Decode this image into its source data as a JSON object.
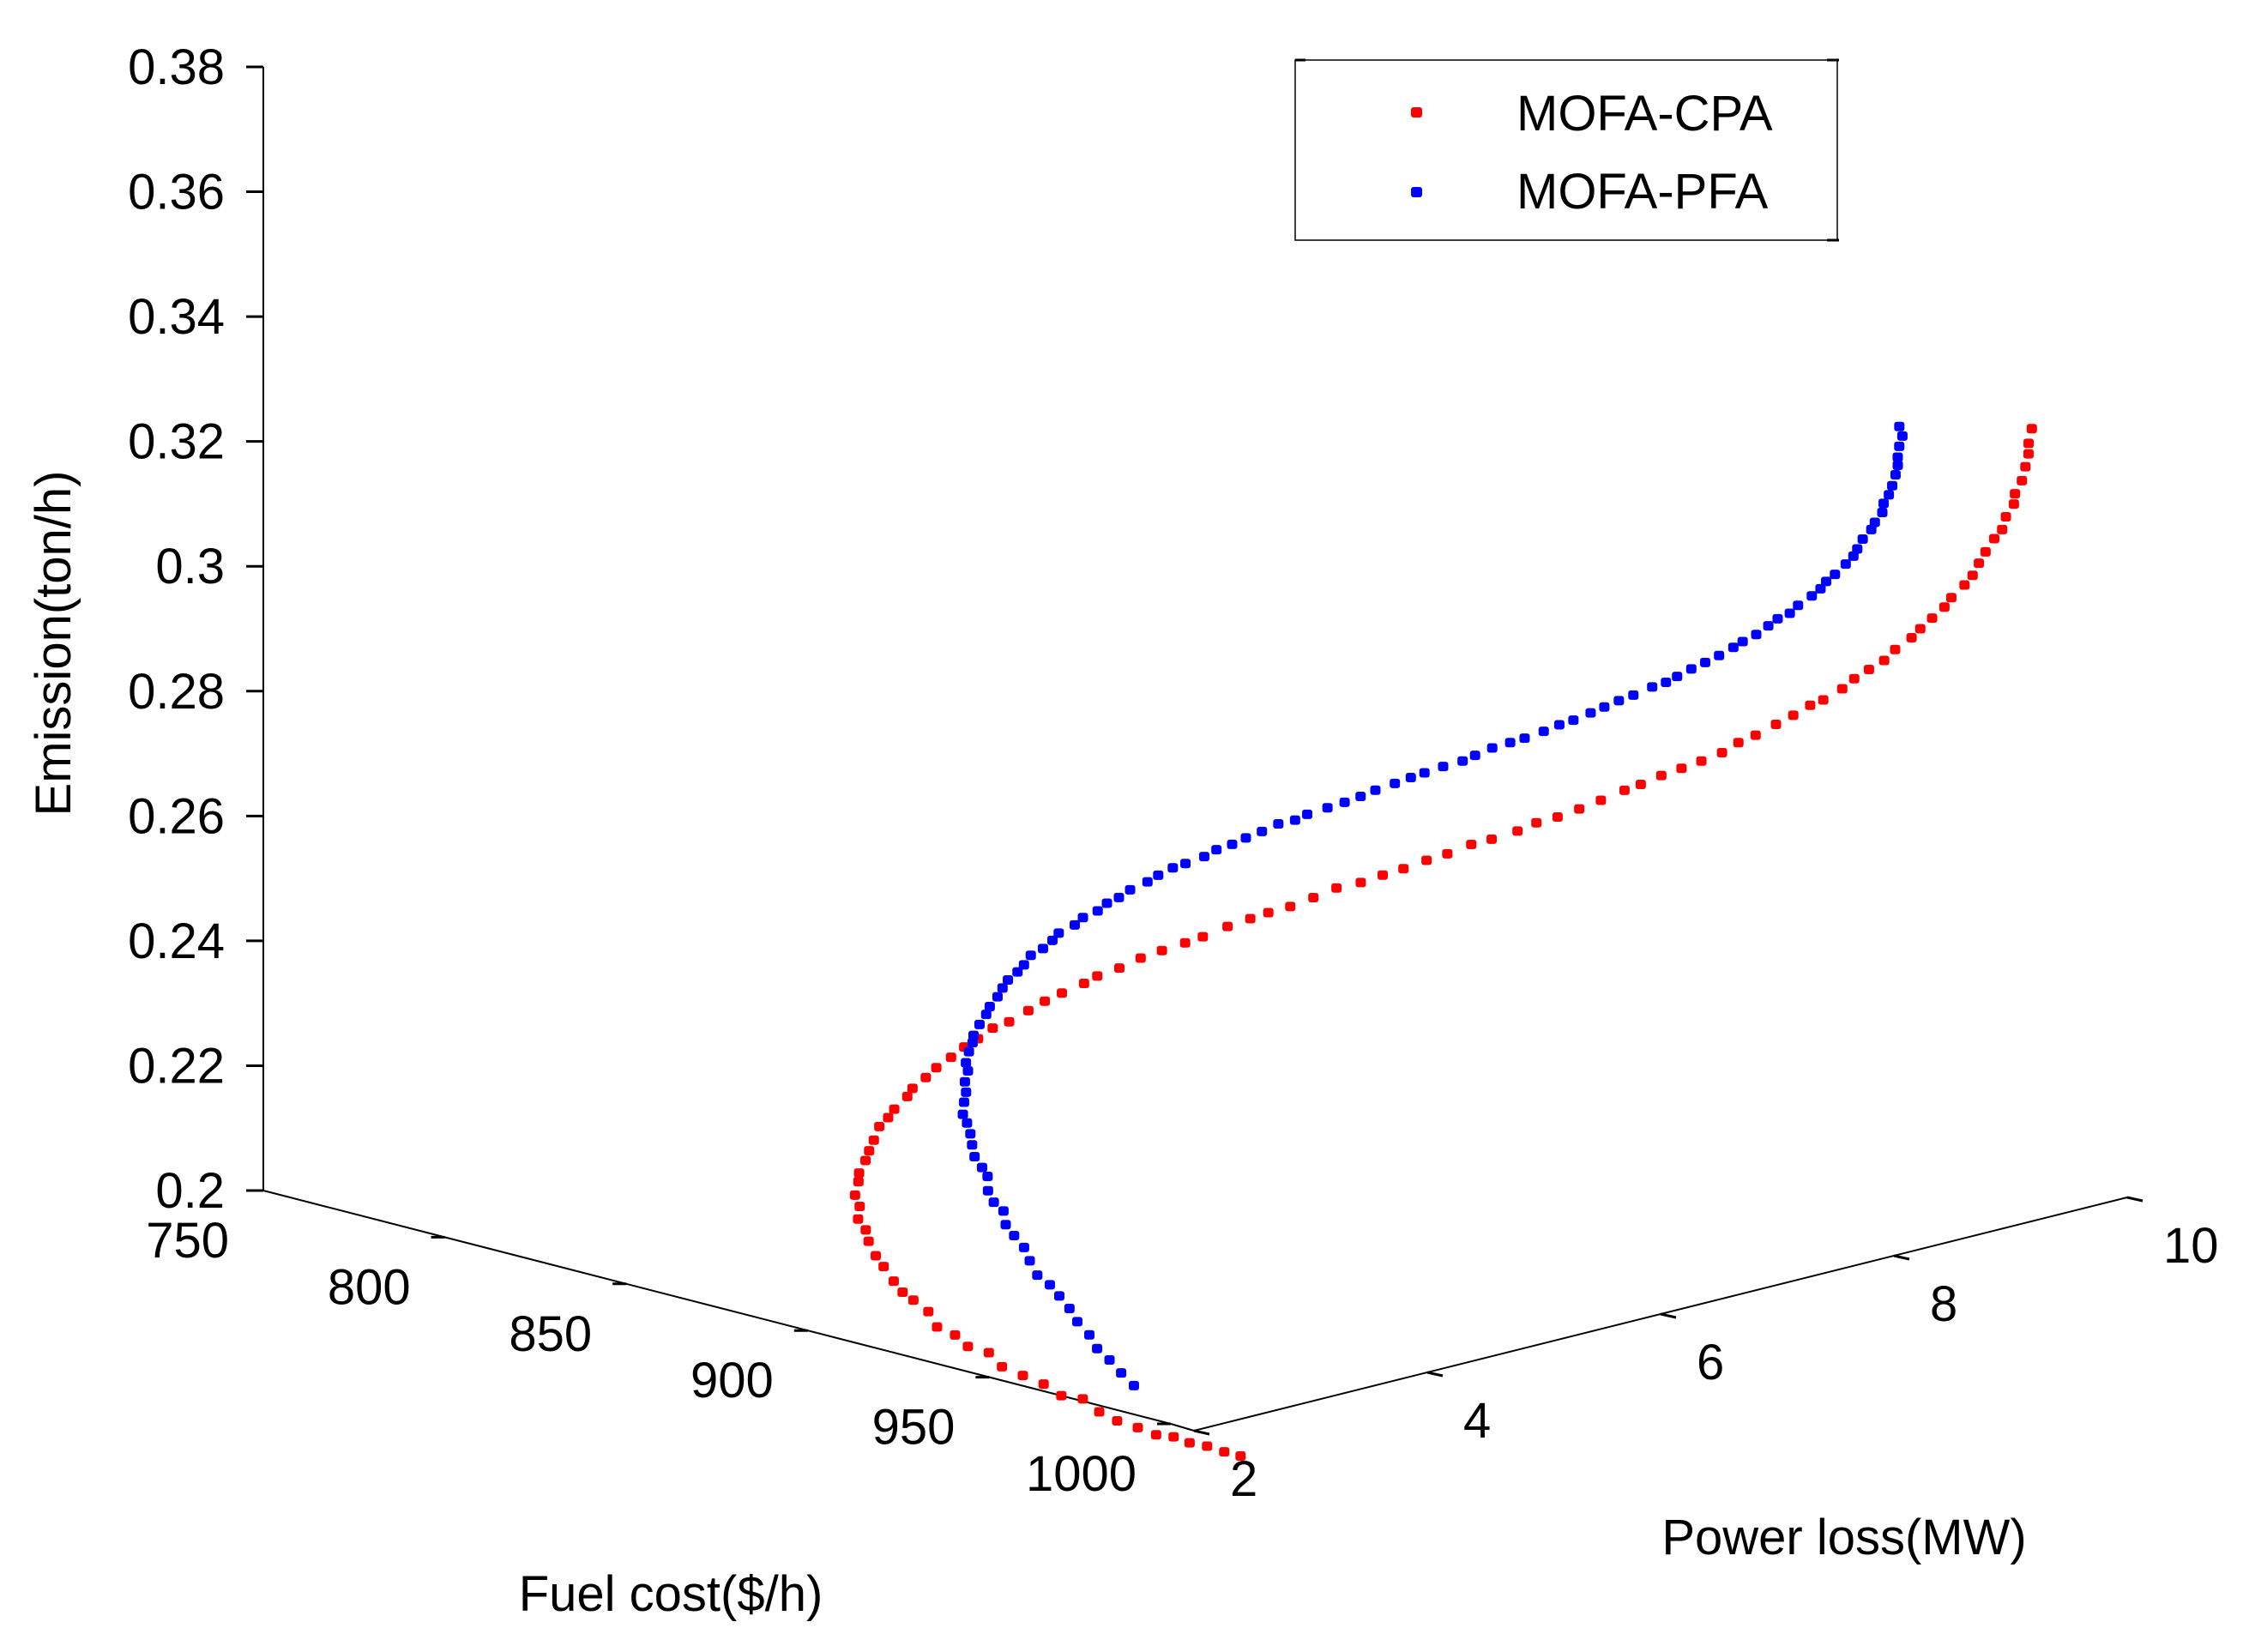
{
  "chart_data": {
    "type": "scatter3d",
    "title": "",
    "axes": {
      "x": {
        "label": "Fuel cost($/h)",
        "range": [
          750,
          1000
        ],
        "ticks": [
          750,
          800,
          850,
          900,
          950,
          1000
        ],
        "tick_labels": [
          "750",
          "800",
          "850",
          "900",
          "950",
          "1000"
        ]
      },
      "y": {
        "label": "Power loss(MW)",
        "range": [
          2,
          10
        ],
        "ticks": [
          2,
          4,
          6,
          8,
          10
        ],
        "tick_labels": [
          "2",
          "4",
          "6",
          "8",
          "10"
        ]
      },
      "z": {
        "label": "Emission(ton/h)",
        "range": [
          0.2,
          0.38
        ],
        "ticks": [
          0.2,
          0.22,
          0.24,
          0.26,
          0.28,
          0.3,
          0.32,
          0.34,
          0.36,
          0.38
        ],
        "tick_labels": [
          "0.2",
          "0.22",
          "0.24",
          "0.26",
          "0.28",
          "0.3",
          "0.32",
          "0.34",
          "0.36",
          "0.38"
        ]
      }
    },
    "legend": {
      "position": "top-right",
      "entries": [
        "MOFA-CPA",
        "MOFA-PFA"
      ]
    },
    "series": [
      {
        "name": "MOFA-CPA",
        "color": "#ff0000",
        "points": [
          [
            1000.3,
            2.39,
            0.1941
          ],
          [
            995.8,
            2.39,
            0.1941
          ],
          [
            991.4,
            2.38,
            0.1944
          ],
          [
            986.9,
            2.37,
            0.1943
          ],
          [
            982.5,
            2.37,
            0.1946
          ],
          [
            978.0,
            2.36,
            0.1943
          ],
          [
            973.6,
            2.34,
            0.1949
          ],
          [
            969.2,
            2.3,
            0.1955
          ],
          [
            964.9,
            2.28,
            0.1964
          ],
          [
            960.7,
            2.27,
            0.1979
          ],
          [
            956.7,
            2.21,
            0.1981
          ],
          [
            952.8,
            2.18,
            0.1995
          ],
          [
            949.0,
            2.12,
            0.2006
          ],
          [
            945.5,
            2.05,
            0.2018
          ],
          [
            942.2,
            2.04,
            0.2036
          ],
          [
            939.0,
            1.96,
            0.2045
          ],
          [
            936.1,
            1.94,
            0.206
          ],
          [
            933.4,
            1.87,
            0.2072
          ],
          [
            931.0,
            1.87,
            0.2093
          ],
          [
            928.8,
            1.81,
            0.2111
          ],
          [
            926.8,
            1.78,
            0.2122
          ],
          [
            925.0,
            1.76,
            0.2138
          ],
          [
            923.5,
            1.72,
            0.2161
          ],
          [
            922.3,
            1.69,
            0.2178
          ],
          [
            921.3,
            1.66,
            0.2201
          ],
          [
            920.5,
            1.66,
            0.2218
          ],
          [
            920.0,
            1.61,
            0.2237
          ],
          [
            919.8,
            1.63,
            0.2256
          ],
          [
            919.8,
            1.59,
            0.2276
          ],
          [
            920.1,
            1.61,
            0.2297
          ],
          [
            920.6,
            1.6,
            0.2312
          ],
          [
            921.4,
            1.63,
            0.2332
          ],
          [
            922.4,
            1.63,
            0.2349
          ],
          [
            923.7,
            1.63,
            0.2368
          ],
          [
            925.2,
            1.63,
            0.2392
          ],
          [
            927.0,
            1.65,
            0.2408
          ],
          [
            929.0,
            1.64,
            0.2425
          ],
          [
            931.3,
            1.68,
            0.2447
          ],
          [
            933.7,
            1.65,
            0.2465
          ],
          [
            936.4,
            1.68,
            0.2485
          ],
          [
            939.3,
            1.68,
            0.2505
          ],
          [
            942.4,
            1.71,
            0.2525
          ],
          [
            945.7,
            1.72,
            0.2546
          ],
          [
            949.2,
            1.73,
            0.2564
          ],
          [
            952.9,
            1.74,
            0.2586
          ],
          [
            956.8,
            1.76,
            0.2601
          ],
          [
            960.8,
            1.8,
            0.2623
          ],
          [
            965.0,
            1.81,
            0.2644
          ],
          [
            969.4,
            1.82,
            0.2663
          ],
          [
            973.9,
            1.87,
            0.2683
          ],
          [
            978.5,
            1.84,
            0.2703
          ],
          [
            983.3,
            1.88,
            0.2721
          ],
          [
            988.2,
            1.91,
            0.2743
          ],
          [
            993.1,
            1.94,
            0.2761
          ],
          [
            998.2,
            1.98,
            0.2779
          ],
          [
            1003.4,
            1.97,
            0.2797
          ],
          [
            1008.6,
            2.02,
            0.2819
          ],
          [
            1013.9,
            2.05,
            0.2838
          ],
          [
            1019.2,
            2.04,
            0.2856
          ],
          [
            1024.6,
            2.06,
            0.2873
          ],
          [
            1030.0,
            2.09,
            0.2894
          ],
          [
            1035.4,
            2.12,
            0.2916
          ],
          [
            1040.8,
            2.16,
            0.2931
          ],
          [
            1046.2,
            2.18,
            0.295
          ],
          [
            1051.6,
            2.19,
            0.2968
          ],
          [
            1057.0,
            2.22,
            0.2988
          ],
          [
            1062.4,
            2.23,
            0.3006
          ],
          [
            1067.7,
            2.27,
            0.3027
          ],
          [
            1073.0,
            2.28,
            0.3043
          ],
          [
            1078.2,
            2.34,
            0.3061
          ],
          [
            1083.4,
            2.34,
            0.3082
          ],
          [
            1088.6,
            2.36,
            0.3098
          ],
          [
            1093.6,
            2.39,
            0.3117
          ],
          [
            1098.6,
            2.42,
            0.3137
          ],
          [
            1103.5,
            2.47,
            0.3158
          ],
          [
            1108.3,
            2.46,
            0.3175
          ],
          [
            1113.0,
            2.49,
            0.3195
          ],
          [
            1117.6,
            2.52,
            0.3212
          ],
          [
            1122.1,
            2.55,
            0.3229
          ],
          [
            1126.5,
            2.59,
            0.3247
          ],
          [
            1130.7,
            2.6,
            0.3269
          ],
          [
            1134.8,
            2.62,
            0.3286
          ],
          [
            1138.8,
            2.67,
            0.3307
          ],
          [
            1142.6,
            2.7,
            0.3326
          ],
          [
            1146.3,
            2.73,
            0.3346
          ],
          [
            1149.9,
            2.73,
            0.336
          ],
          [
            1153.2,
            2.79,
            0.338
          ],
          [
            1156.5,
            2.79,
            0.3401
          ],
          [
            1159.6,
            2.82,
            0.3419
          ],
          [
            1162.5,
            2.86,
            0.3436
          ],
          [
            1165.2,
            2.87,
            0.3457
          ],
          [
            1167.8,
            2.93,
            0.3477
          ],
          [
            1170.2,
            2.93,
            0.3495
          ],
          [
            1172.5,
            2.96,
            0.3514
          ],
          [
            1174.6,
            3.0,
            0.3533
          ],
          [
            1176.5,
            3.0,
            0.3551
          ],
          [
            1178.2,
            3.06,
            0.3571
          ],
          [
            1179.8,
            3.08,
            0.3588
          ],
          [
            1181.2,
            3.09,
            0.3609
          ],
          [
            1182.4,
            3.11,
            0.3628
          ],
          [
            1183.5,
            3.15,
            0.3649
          ],
          [
            1184.4,
            3.19,
            0.3663
          ],
          [
            1185.1,
            3.2,
            0.3684
          ],
          [
            1185.7,
            3.25,
            0.3703
          ],
          [
            1186.0,
            3.25,
            0.372
          ],
          [
            1186.3,
            3.3,
            0.3739
          ],
          [
            1186.3,
            3.33,
            0.376
          ],
          [
            1186.2,
            3.36,
            0.3779
          ],
          [
            1185.9,
            3.37,
            0.3795
          ],
          [
            1185.5,
            3.41,
            0.3816
          ]
        ]
      },
      {
        "name": "MOFA-PFA",
        "color": "#0000ff",
        "points": [
          [
            970.6,
            2.4,
            0.2009
          ],
          [
            967.4,
            2.39,
            0.2025
          ],
          [
            964.2,
            2.39,
            0.2041
          ],
          [
            961.1,
            2.38,
            0.2055
          ],
          [
            958.0,
            2.41,
            0.2071
          ],
          [
            955.0,
            2.4,
            0.2088
          ],
          [
            952.2,
            2.42,
            0.2104
          ],
          [
            949.4,
            2.42,
            0.212
          ],
          [
            946.8,
            2.42,
            0.2134
          ],
          [
            944.3,
            2.39,
            0.2147
          ],
          [
            941.9,
            2.4,
            0.2166
          ],
          [
            939.7,
            2.42,
            0.2183
          ],
          [
            937.6,
            2.4,
            0.22
          ],
          [
            935.6,
            2.39,
            0.2215
          ],
          [
            933.7,
            2.43,
            0.2232
          ],
          [
            932.0,
            2.4,
            0.2245
          ],
          [
            930.4,
            2.4,
            0.2261
          ],
          [
            929.0,
            2.44,
            0.228
          ],
          [
            927.8,
            2.43,
            0.2293
          ],
          [
            926.7,
            2.4,
            0.231
          ],
          [
            925.7,
            2.41,
            0.2327
          ],
          [
            924.9,
            2.42,
            0.2343
          ],
          [
            924.3,
            2.41,
            0.236
          ],
          [
            923.8,
            2.39,
            0.2374
          ],
          [
            923.5,
            2.41,
            0.2392
          ],
          [
            923.4,
            2.43,
            0.2407
          ],
          [
            923.4,
            2.42,
            0.2424
          ],
          [
            923.6,
            2.44,
            0.2441
          ],
          [
            924.0,
            2.41,
            0.2456
          ],
          [
            924.5,
            2.42,
            0.2474
          ],
          [
            925.2,
            2.43,
            0.2489
          ],
          [
            926.1,
            2.41,
            0.2503
          ],
          [
            927.1,
            2.43,
            0.2521
          ],
          [
            928.3,
            2.45,
            0.2538
          ],
          [
            929.6,
            2.44,
            0.2553
          ],
          [
            931.1,
            2.46,
            0.257
          ],
          [
            932.8,
            2.45,
            0.2587
          ],
          [
            934.6,
            2.44,
            0.2603
          ],
          [
            936.6,
            2.46,
            0.2618
          ],
          [
            938.7,
            2.45,
            0.2633
          ],
          [
            940.9,
            2.44,
            0.2652
          ],
          [
            943.3,
            2.47,
            0.2665
          ],
          [
            945.9,
            2.47,
            0.2682
          ],
          [
            948.6,
            2.44,
            0.2699
          ],
          [
            951.4,
            2.49,
            0.2714
          ],
          [
            954.3,
            2.47,
            0.2731
          ],
          [
            957.4,
            2.5,
            0.2745
          ],
          [
            960.6,
            2.48,
            0.2763
          ],
          [
            963.9,
            2.48,
            0.2777
          ],
          [
            967.3,
            2.47,
            0.2795
          ],
          [
            970.8,
            2.51,
            0.2811
          ],
          [
            974.4,
            2.49,
            0.2828
          ],
          [
            978.1,
            2.5,
            0.2845
          ],
          [
            981.9,
            2.49,
            0.2858
          ],
          [
            985.8,
            2.53,
            0.2873
          ],
          [
            989.8,
            2.51,
            0.2891
          ],
          [
            993.8,
            2.52,
            0.2905
          ],
          [
            997.9,
            2.51,
            0.2922
          ],
          [
            1002.0,
            2.52,
            0.2938
          ],
          [
            1006.2,
            2.53,
            0.2956
          ],
          [
            1010.5,
            2.54,
            0.2968
          ],
          [
            1014.8,
            2.51,
            0.2985
          ],
          [
            1019.1,
            2.55,
            0.3
          ],
          [
            1023.5,
            2.56,
            0.3015
          ],
          [
            1027.9,
            2.56,
            0.3031
          ],
          [
            1032.3,
            2.55,
            0.3048
          ],
          [
            1036.7,
            2.58,
            0.3064
          ],
          [
            1041.1,
            2.58,
            0.308
          ],
          [
            1045.5,
            2.56,
            0.3095
          ],
          [
            1050.0,
            2.58,
            0.3111
          ],
          [
            1054.4,
            2.61,
            0.3125
          ],
          [
            1058.8,
            2.58,
            0.3142
          ],
          [
            1063.2,
            2.59,
            0.316
          ],
          [
            1067.5,
            2.61,
            0.3174
          ],
          [
            1071.8,
            2.6,
            0.3188
          ],
          [
            1076.1,
            2.63,
            0.3204
          ],
          [
            1080.4,
            2.63,
            0.3221
          ],
          [
            1084.6,
            2.62,
            0.3235
          ],
          [
            1088.7,
            2.64,
            0.3252
          ],
          [
            1092.8,
            2.63,
            0.3268
          ],
          [
            1096.8,
            2.63,
            0.3284
          ],
          [
            1100.8,
            2.63,
            0.3299
          ],
          [
            1104.7,
            2.67,
            0.3316
          ],
          [
            1108.5,
            2.67,
            0.3329
          ],
          [
            1112.2,
            2.65,
            0.3345
          ],
          [
            1115.8,
            2.66,
            0.3362
          ],
          [
            1119.3,
            2.67,
            0.3377
          ],
          [
            1122.8,
            2.68,
            0.3393
          ],
          [
            1126.1,
            2.7,
            0.341
          ],
          [
            1129.3,
            2.68,
            0.3425
          ],
          [
            1132.4,
            2.7,
            0.344
          ],
          [
            1135.4,
            2.71,
            0.3458
          ],
          [
            1138.3,
            2.7,
            0.3474
          ],
          [
            1141.0,
            2.72,
            0.3486
          ],
          [
            1143.6,
            2.71,
            0.3503
          ],
          [
            1146.1,
            2.75,
            0.352
          ],
          [
            1148.5,
            2.75,
            0.3535
          ],
          [
            1150.7,
            2.73,
            0.3551
          ],
          [
            1152.8,
            2.74,
            0.3565
          ],
          [
            1154.8,
            2.77,
            0.3583
          ],
          [
            1156.6,
            2.78,
            0.3598
          ],
          [
            1158.3,
            2.76,
            0.3613
          ],
          [
            1159.8,
            2.76,
            0.3631
          ],
          [
            1161.2,
            2.79,
            0.3647
          ],
          [
            1162.5,
            2.78,
            0.3661
          ],
          [
            1163.6,
            2.81,
            0.3677
          ],
          [
            1164.6,
            2.79,
            0.3694
          ],
          [
            1165.4,
            2.81,
            0.3708
          ],
          [
            1166.0,
            2.82,
            0.3723
          ],
          [
            1166.6,
            2.83,
            0.3741
          ],
          [
            1166.9,
            2.84,
            0.3756
          ],
          [
            1167.2,
            2.83,
            0.377
          ],
          [
            1167.3,
            2.84,
            0.3787
          ],
          [
            1167.2,
            2.87,
            0.3802
          ],
          [
            1167.0,
            2.85,
            0.3818
          ]
        ]
      }
    ]
  }
}
